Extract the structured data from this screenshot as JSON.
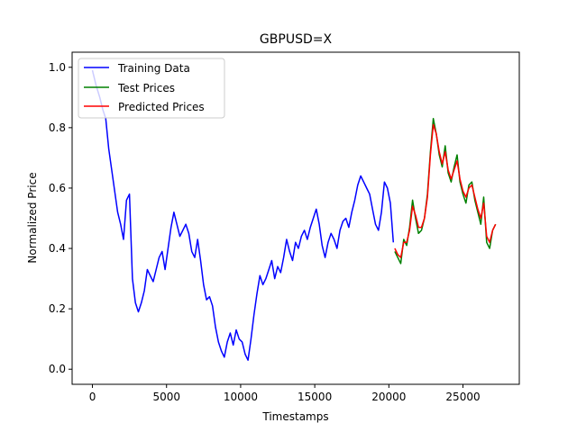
{
  "chart_data": {
    "type": "line",
    "title": "GBPUSD=X",
    "xlabel": "Timestamps",
    "ylabel": "Normalized Price",
    "xlim": [
      -1370,
      28800
    ],
    "ylim": [
      -0.05,
      1.05
    ],
    "xticks": [
      0,
      5000,
      10000,
      15000,
      20000,
      25000
    ],
    "xtick_labels": [
      "0",
      "5000",
      "10000",
      "15000",
      "20000",
      "25000"
    ],
    "yticks": [
      0.0,
      0.2,
      0.4,
      0.6,
      0.8,
      1.0
    ],
    "ytick_labels": [
      "0.0",
      "0.2",
      "0.4",
      "0.6",
      "0.8",
      "1.0"
    ],
    "grid": false,
    "legend_position": "top-left",
    "series": [
      {
        "name": "Training Data",
        "color": "#0000ff",
        "x": [
          0,
          250,
          500,
          700,
          900,
          1100,
          1300,
          1500,
          1700,
          1900,
          2100,
          2300,
          2500,
          2700,
          2900,
          3100,
          3300,
          3500,
          3700,
          3900,
          4100,
          4300,
          4500,
          4700,
          4900,
          5100,
          5300,
          5500,
          5700,
          5900,
          6100,
          6300,
          6500,
          6700,
          6900,
          7100,
          7300,
          7500,
          7700,
          7900,
          8100,
          8300,
          8500,
          8700,
          8900,
          9100,
          9300,
          9500,
          9700,
          9900,
          10100,
          10300,
          10500,
          10700,
          10900,
          11100,
          11300,
          11500,
          11700,
          11900,
          12100,
          12300,
          12500,
          12700,
          12900,
          13100,
          13300,
          13500,
          13700,
          13900,
          14100,
          14300,
          14500,
          14700,
          14900,
          15100,
          15300,
          15500,
          15700,
          15900,
          16100,
          16300,
          16500,
          16700,
          16900,
          17100,
          17300,
          17500,
          17700,
          17900,
          18100,
          18300,
          18500,
          18700,
          18900,
          19100,
          19300,
          19500,
          19700,
          19900,
          20100,
          20300
        ],
        "y": [
          0.99,
          0.94,
          0.9,
          0.86,
          0.83,
          0.73,
          0.66,
          0.59,
          0.52,
          0.48,
          0.43,
          0.56,
          0.58,
          0.3,
          0.22,
          0.19,
          0.22,
          0.26,
          0.33,
          0.31,
          0.29,
          0.33,
          0.37,
          0.39,
          0.33,
          0.4,
          0.47,
          0.52,
          0.48,
          0.44,
          0.46,
          0.48,
          0.45,
          0.39,
          0.37,
          0.43,
          0.36,
          0.28,
          0.23,
          0.24,
          0.21,
          0.14,
          0.09,
          0.06,
          0.04,
          0.09,
          0.12,
          0.08,
          0.13,
          0.1,
          0.09,
          0.05,
          0.03,
          0.1,
          0.18,
          0.25,
          0.31,
          0.28,
          0.3,
          0.33,
          0.36,
          0.3,
          0.34,
          0.32,
          0.37,
          0.43,
          0.39,
          0.36,
          0.42,
          0.4,
          0.44,
          0.46,
          0.43,
          0.47,
          0.5,
          0.53,
          0.48,
          0.41,
          0.37,
          0.42,
          0.45,
          0.43,
          0.4,
          0.46,
          0.49,
          0.5,
          0.47,
          0.52,
          0.56,
          0.61,
          0.64,
          0.62,
          0.6,
          0.58,
          0.53,
          0.48,
          0.46,
          0.52,
          0.62,
          0.6,
          0.55,
          0.42
        ]
      },
      {
        "name": "Test Prices",
        "color": "#008000",
        "x": [
          20400,
          20600,
          20800,
          21000,
          21200,
          21400,
          21600,
          21800,
          22000,
          22200,
          22400,
          22600,
          22800,
          23000,
          23200,
          23400,
          23600,
          23800,
          24000,
          24200,
          24400,
          24600,
          24800,
          25000,
          25200,
          25400,
          25600,
          25800,
          26000,
          26200,
          26400,
          26600,
          26800,
          27000,
          27200
        ],
        "y": [
          0.39,
          0.37,
          0.35,
          0.43,
          0.41,
          0.47,
          0.56,
          0.5,
          0.45,
          0.46,
          0.5,
          0.58,
          0.72,
          0.83,
          0.78,
          0.71,
          0.67,
          0.74,
          0.65,
          0.62,
          0.67,
          0.71,
          0.62,
          0.58,
          0.55,
          0.61,
          0.62,
          0.56,
          0.52,
          0.48,
          0.57,
          0.42,
          0.4,
          0.46,
          0.48
        ]
      },
      {
        "name": "Predicted Prices",
        "color": "#ff0000",
        "x": [
          20400,
          20600,
          20800,
          21000,
          21200,
          21400,
          21600,
          21800,
          22000,
          22200,
          22400,
          22600,
          22800,
          23000,
          23200,
          23400,
          23600,
          23800,
          24000,
          24200,
          24400,
          24600,
          24800,
          25000,
          25200,
          25400,
          25600,
          25800,
          26000,
          26200,
          26400,
          26600,
          26800,
          27000,
          27200
        ],
        "y": [
          0.4,
          0.38,
          0.37,
          0.42,
          0.42,
          0.46,
          0.54,
          0.51,
          0.47,
          0.47,
          0.5,
          0.57,
          0.71,
          0.81,
          0.78,
          0.72,
          0.68,
          0.72,
          0.66,
          0.63,
          0.66,
          0.69,
          0.63,
          0.59,
          0.57,
          0.6,
          0.61,
          0.57,
          0.53,
          0.5,
          0.55,
          0.44,
          0.42,
          0.46,
          0.48
        ]
      }
    ]
  }
}
